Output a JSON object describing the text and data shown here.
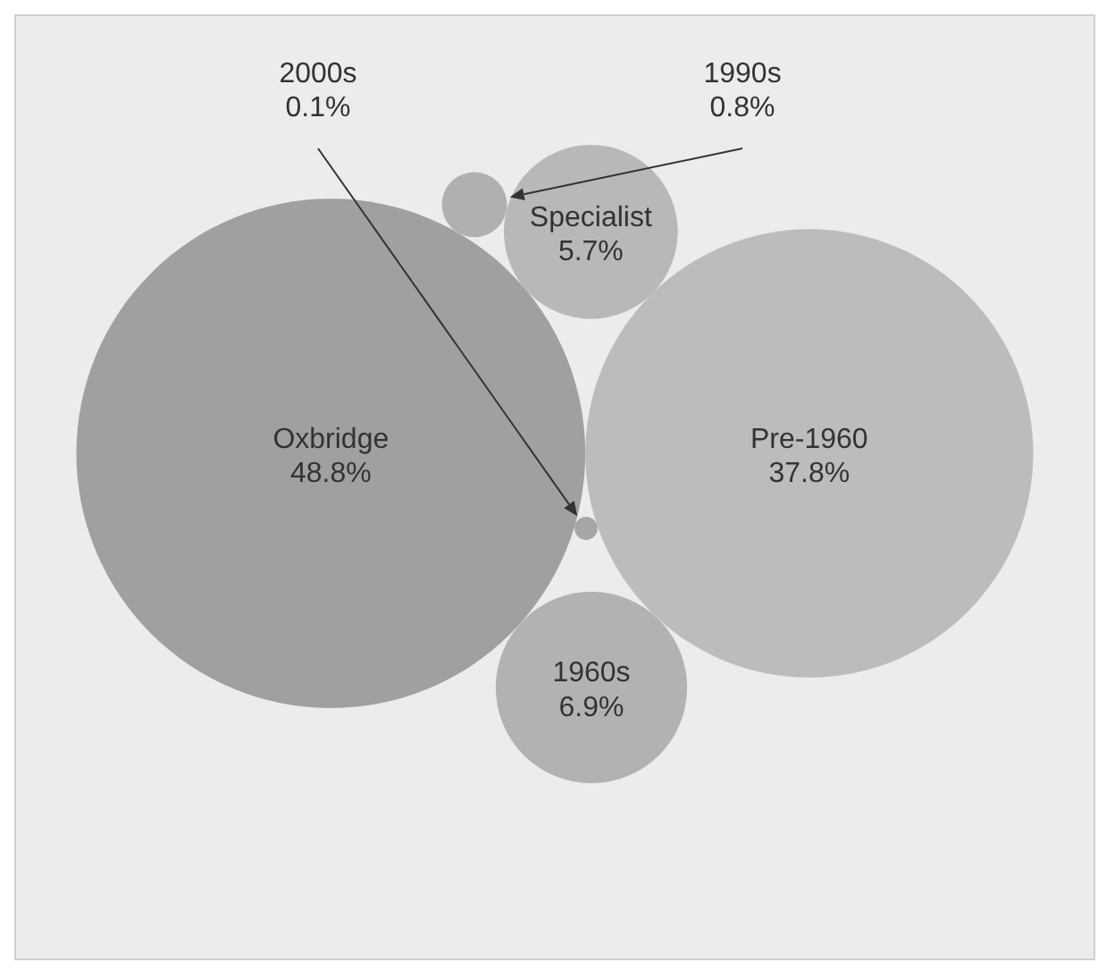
{
  "chart_data": {
    "type": "other",
    "categories": [
      "Oxbridge",
      "Pre-1960",
      "1960s",
      "Specialist",
      "1990s",
      "2000s"
    ],
    "values": [
      48.8,
      37.8,
      6.9,
      5.7,
      0.8,
      0.1
    ],
    "value_labels": [
      "48.8%",
      "37.8%",
      "6.9%",
      "5.7%",
      "0.8%",
      "0.1%"
    ],
    "colors": [
      "#a0a0a2",
      "#bcbcbe",
      "#b2b2b4",
      "#b8b8ba",
      "#b0b0b2",
      "#a6a6a8"
    ]
  }
}
